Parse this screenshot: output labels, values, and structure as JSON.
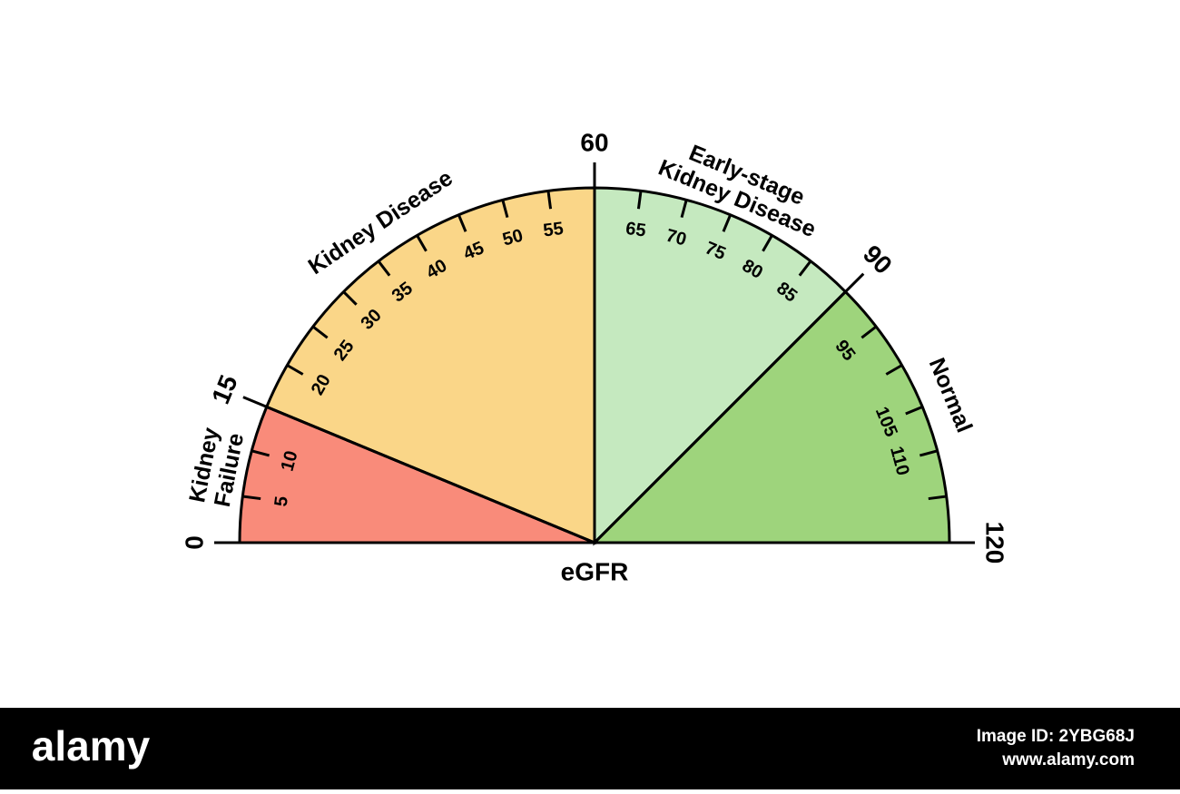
{
  "chart_data": {
    "type": "gauge",
    "title": "eGFR",
    "range": [
      0,
      120
    ],
    "segments": [
      {
        "label_lines": [
          "Kidney",
          "Failure"
        ],
        "start": 0,
        "end": 15,
        "color": "#f98b7a"
      },
      {
        "label_lines": [
          "Kidney Disease"
        ],
        "start": 15,
        "end": 60,
        "color": "#fad688"
      },
      {
        "label_lines": [
          "Early-stage",
          "Kidney Disease"
        ],
        "start": 60,
        "end": 90,
        "color": "#c5e9bf"
      },
      {
        "label_lines": [
          "Normal"
        ],
        "start": 90,
        "end": 120,
        "color": "#9ed47c"
      }
    ],
    "major_ticks": [
      0,
      15,
      60,
      90,
      120
    ],
    "minor_ticks": [
      5,
      10,
      20,
      25,
      30,
      35,
      40,
      45,
      50,
      55,
      65,
      70,
      75,
      80,
      85,
      95,
      105,
      110
    ],
    "unlabeled_ticks": [
      100,
      115
    ]
  },
  "footer": {
    "logo": "alamy",
    "image_id": "Image ID: 2YBG68J",
    "url": "www.alamy.com"
  }
}
